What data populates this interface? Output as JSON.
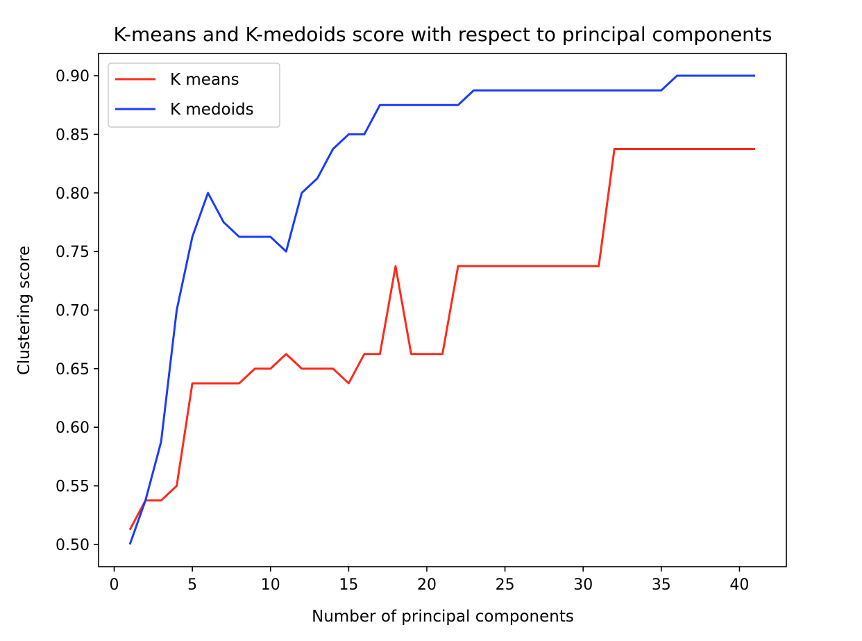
{
  "chart_data": {
    "type": "line",
    "title": "K-means and K-medoids score with respect to principal components",
    "xlabel": "Number of principal components",
    "ylabel": "Clustering score",
    "xlim": [
      -1,
      43
    ],
    "ylim": [
      0.481,
      0.919
    ],
    "xticks": [
      0,
      5,
      10,
      15,
      20,
      25,
      30,
      35,
      40
    ],
    "yticks": [
      0.5,
      0.55,
      0.6,
      0.65,
      0.7,
      0.75,
      0.8,
      0.85,
      0.9
    ],
    "grid": false,
    "legend_position": "top-left",
    "x": [
      1,
      2,
      3,
      4,
      5,
      6,
      7,
      8,
      9,
      10,
      11,
      12,
      13,
      14,
      15,
      16,
      17,
      18,
      19,
      20,
      21,
      22,
      23,
      24,
      25,
      26,
      27,
      28,
      29,
      30,
      31,
      32,
      33,
      34,
      35,
      36,
      37,
      38,
      39,
      40,
      41
    ],
    "series": [
      {
        "name": "K means",
        "color": "#ff2a1a",
        "values": [
          0.5125,
          0.5375,
          0.5375,
          0.55,
          0.6375,
          0.6375,
          0.6375,
          0.6375,
          0.65,
          0.65,
          0.6625,
          0.65,
          0.65,
          0.65,
          0.6375,
          0.6625,
          0.6625,
          0.7375,
          0.6625,
          0.6625,
          0.6625,
          0.7375,
          0.7375,
          0.7375,
          0.7375,
          0.7375,
          0.7375,
          0.7375,
          0.7375,
          0.7375,
          0.7375,
          0.8375,
          0.8375,
          0.8375,
          0.8375,
          0.8375,
          0.8375,
          0.8375,
          0.8375,
          0.8375,
          0.8375
        ]
      },
      {
        "name": "K medoids",
        "color": "#1a3cff",
        "values": [
          0.5,
          0.5375,
          0.5875,
          0.7,
          0.7625,
          0.8,
          0.775,
          0.7625,
          0.7625,
          0.7625,
          0.75,
          0.8,
          0.8125,
          0.8375,
          0.85,
          0.85,
          0.875,
          0.875,
          0.875,
          0.875,
          0.875,
          0.875,
          0.8875,
          0.8875,
          0.8875,
          0.8875,
          0.8875,
          0.8875,
          0.8875,
          0.8875,
          0.8875,
          0.8875,
          0.8875,
          0.8875,
          0.8875,
          0.9,
          0.9,
          0.9,
          0.9,
          0.9,
          0.9
        ]
      }
    ]
  }
}
